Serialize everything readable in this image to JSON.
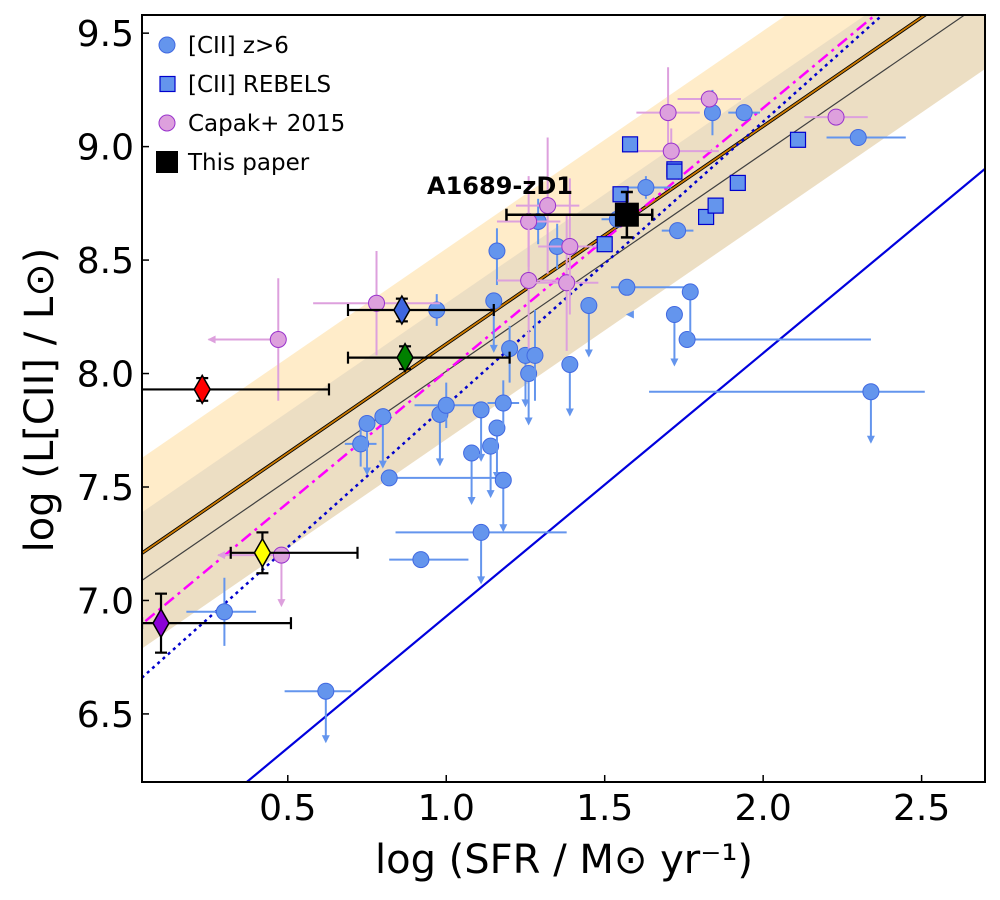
{
  "chart_data": {
    "type": "scatter",
    "xlabel": "log (SFR / M⊙ yr⁻¹)",
    "ylabel": "log (L[CII] / L⊙)",
    "xlim": [
      0.04,
      2.7
    ],
    "ylim": [
      6.2,
      9.58
    ],
    "xticks": [
      "0.5",
      "1.0",
      "1.5",
      "2.0",
      "2.5"
    ],
    "yticks": [
      "6.5",
      "7.0",
      "7.5",
      "8.0",
      "8.5",
      "9.0",
      "9.5"
    ],
    "annotation": "A1689-zD1",
    "legend": [
      {
        "label": "[CII] z>6",
        "marker": "circle",
        "color": "#6495ed"
      },
      {
        "label": "[CII] REBELS",
        "marker": "square",
        "color": "#6495ed"
      },
      {
        "label": "Capak+ 2015",
        "marker": "circle",
        "color": "#dda0dd"
      },
      {
        "label": "This paper",
        "marker": "square",
        "color": "#000000"
      }
    ],
    "relations": [
      {
        "name": "orange relation",
        "intercept": 7.17,
        "slope": 0.96,
        "color": "#cc7a00",
        "band": 0.42
      },
      {
        "name": "grey relation",
        "intercept": 7.05,
        "slope": 0.96,
        "color": "#404040",
        "band": 0.3
      },
      {
        "name": "magenta dash-dot",
        "intercept": 6.85,
        "slope": 1.16,
        "color": "#ff00ff"
      },
      {
        "name": "blue dotted",
        "intercept": 6.61,
        "slope": 1.25,
        "color": "#0000cc"
      },
      {
        "name": "blue solid",
        "intercept": 5.77,
        "slope": 1.16,
        "color": "#0000dd"
      }
    ],
    "cii_z6": [
      {
        "x": 0.3,
        "y": 6.95,
        "xerr": [
          0.12,
          0.1
        ],
        "yerr": [
          0.15,
          0.15
        ]
      },
      {
        "x": 0.62,
        "y": 6.6,
        "xerr": [
          0.13,
          0.08
        ],
        "upper": true
      },
      {
        "x": 0.73,
        "y": 7.69,
        "xerr": [
          0.05,
          0.05
        ],
        "yerr": [
          0.1,
          0.1
        ]
      },
      {
        "x": 0.75,
        "y": 7.78,
        "upper": true
      },
      {
        "x": 0.8,
        "y": 7.81,
        "upper": true
      },
      {
        "x": 0.82,
        "y": 7.54,
        "xerr": [
          0.02,
          0.35
        ]
      },
      {
        "x": 0.92,
        "y": 7.18,
        "xerr": [
          0.1,
          0.15
        ]
      },
      {
        "x": 0.98,
        "y": 7.82,
        "upper": true
      },
      {
        "x": 1.0,
        "y": 7.86,
        "xerr": [
          0.1,
          0.1
        ],
        "yerr": [
          0.1,
          0.1
        ]
      },
      {
        "x": 0.97,
        "y": 8.28,
        "xerr": [
          0.05,
          0.05
        ],
        "yerr": [
          0.07,
          0.07
        ]
      },
      {
        "x": 1.08,
        "y": 7.65,
        "upper": true
      },
      {
        "x": 1.11,
        "y": 7.84,
        "upper": true
      },
      {
        "x": 1.14,
        "y": 7.68,
        "upper": true
      },
      {
        "x": 1.16,
        "y": 7.76,
        "upper": true
      },
      {
        "x": 1.18,
        "y": 7.53,
        "upper": true
      },
      {
        "x": 1.18,
        "y": 7.87,
        "xerr": [
          0.05,
          0.05
        ],
        "yerr": [
          0.1,
          0.1
        ]
      },
      {
        "x": 1.11,
        "y": 7.3,
        "xerr": [
          0.27,
          0.27
        ],
        "upper": true
      },
      {
        "x": 1.15,
        "y": 8.32,
        "upper": true
      },
      {
        "x": 1.16,
        "y": 8.54,
        "yerr": [
          0.15,
          0.1
        ]
      },
      {
        "x": 1.2,
        "y": 8.11,
        "xerr": [
          0.02,
          0.02
        ],
        "yerr": [
          0.15,
          0.1
        ]
      },
      {
        "x": 1.25,
        "y": 8.08,
        "upper": true
      },
      {
        "x": 1.26,
        "y": 8.0,
        "upper": true
      },
      {
        "x": 1.28,
        "y": 8.08,
        "yerr": [
          0.2,
          0.2
        ]
      },
      {
        "x": 1.29,
        "y": 8.67,
        "yerr": [
          0.1,
          0.1
        ]
      },
      {
        "x": 1.35,
        "y": 8.56,
        "xerr": [
          0.05,
          0.05
        ],
        "yerr": [
          0.1,
          0.1
        ]
      },
      {
        "x": 1.39,
        "y": 8.04,
        "upper": true
      },
      {
        "x": 1.45,
        "y": 8.3,
        "upper": true
      },
      {
        "x": 1.54,
        "y": 8.68,
        "xerr": [
          0.05,
          0.05
        ]
      },
      {
        "x": 1.57,
        "y": 8.38,
        "xerr": [
          0.05,
          0.2
        ]
      },
      {
        "x": 1.63,
        "y": 8.82,
        "xerr": [
          0.08,
          0.08
        ],
        "yerr": [
          0.05,
          0.05
        ]
      },
      {
        "x": 1.73,
        "y": 8.63,
        "xerr": [
          0.05,
          0.05
        ]
      },
      {
        "x": 1.72,
        "y": 8.26,
        "upper": true
      },
      {
        "x": 1.76,
        "y": 8.15,
        "xerr": [
          0.02,
          0.58
        ]
      },
      {
        "x": 1.77,
        "y": 8.36,
        "upper": true
      },
      {
        "x": 1.84,
        "y": 9.15,
        "yerr": [
          0.1,
          0.1
        ]
      },
      {
        "x": 1.94,
        "y": 9.15,
        "xerr": [
          0.05,
          0.05
        ]
      },
      {
        "x": 2.3,
        "y": 9.04,
        "xerr": [
          0.1,
          0.15
        ]
      },
      {
        "x": 2.34,
        "y": 7.92,
        "xerr": [
          0.7,
          0.17
        ],
        "upper": true
      }
    ],
    "rebels": [
      {
        "x": 1.5,
        "y": 8.57
      },
      {
        "x": 1.55,
        "y": 8.79
      },
      {
        "x": 1.58,
        "y": 9.01
      },
      {
        "x": 1.72,
        "y": 8.9
      },
      {
        "x": 1.72,
        "y": 8.89
      },
      {
        "x": 1.82,
        "y": 8.69
      },
      {
        "x": 1.85,
        "y": 8.74
      },
      {
        "x": 1.92,
        "y": 8.84
      },
      {
        "x": 2.11,
        "y": 9.03
      }
    ],
    "capak": [
      {
        "x": 0.47,
        "y": 8.15,
        "xerr": [
          0.22,
          0.0
        ],
        "yerr": [
          0.27,
          0.27
        ]
      },
      {
        "x": 0.48,
        "y": 7.2,
        "xerr": [
          0.2,
          0.0
        ],
        "upper": true
      },
      {
        "x": 0.78,
        "y": 8.31,
        "xerr": [
          0.2,
          0.2
        ],
        "yerr": [
          0.23,
          0.23
        ]
      },
      {
        "x": 1.26,
        "y": 8.67,
        "xerr": [
          0.1,
          0.1
        ],
        "yerr": [
          0.2,
          0.2
        ]
      },
      {
        "x": 1.26,
        "y": 8.41,
        "xerr": [
          0.1,
          0.1
        ],
        "yerr": [
          0.3,
          0.3
        ]
      },
      {
        "x": 1.32,
        "y": 8.74,
        "xerr": [
          0.1,
          0.1
        ],
        "yerr": [
          0.3,
          0.3
        ]
      },
      {
        "x": 1.38,
        "y": 8.4,
        "xerr": [
          0.1,
          0.1
        ],
        "yerr": [
          0.3,
          0.3
        ]
      },
      {
        "x": 1.39,
        "y": 8.56,
        "xerr": [
          0.1,
          0.1
        ],
        "yerr": [
          0.3,
          0.3
        ]
      },
      {
        "x": 1.7,
        "y": 9.15,
        "xerr": [
          0.1,
          0.1
        ],
        "yerr": [
          0.2,
          0.2
        ]
      },
      {
        "x": 1.71,
        "y": 8.98,
        "xerr": [
          0.15,
          0.15
        ],
        "yerr": [
          0.1,
          0.1
        ]
      },
      {
        "x": 1.83,
        "y": 9.21,
        "xerr": [
          0.1,
          0.1
        ]
      },
      {
        "x": 2.23,
        "y": 9.13,
        "xerr": [
          0.1,
          0.1
        ]
      }
    ],
    "this_paper": {
      "x": 1.57,
      "y": 8.7,
      "xerr": [
        0.38,
        0.08
      ],
      "yerr": [
        0.1,
        0.1
      ]
    },
    "diamonds": [
      {
        "color": "#ff0000",
        "x": 0.23,
        "y": 7.93,
        "xerr": [
          0.25,
          0.4
        ],
        "yerr": [
          0.05,
          0.05
        ]
      },
      {
        "color": "#3f67e0",
        "x": 0.86,
        "y": 8.28,
        "xerr": [
          0.17,
          0.29
        ],
        "yerr": [
          0.05,
          0.05
        ]
      },
      {
        "color": "#008000",
        "x": 0.87,
        "y": 8.07,
        "xerr": [
          0.18,
          0.33
        ],
        "yerr": [
          0.05,
          0.05
        ]
      },
      {
        "color": "#ffff00",
        "x": 0.42,
        "y": 7.21,
        "xerr": [
          0.1,
          0.3
        ],
        "yerr": [
          0.09,
          0.09
        ]
      },
      {
        "color": "#8b00d6",
        "x": 0.1,
        "y": 6.9,
        "xerr": [
          0.06,
          0.41
        ],
        "yerr": [
          0.13,
          0.13
        ]
      }
    ]
  }
}
